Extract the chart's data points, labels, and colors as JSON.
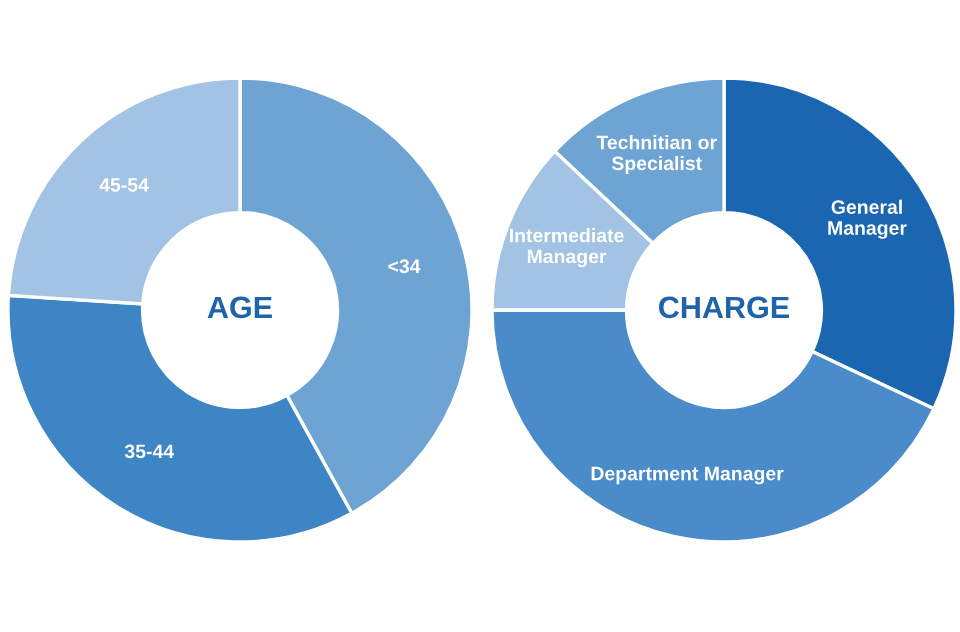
{
  "chart_data": [
    {
      "type": "donut",
      "title": "AGE",
      "categories": [
        "<34",
        "35-44",
        "45-54"
      ],
      "values": [
        42,
        34,
        24
      ],
      "colors": [
        "#6ea4d3",
        "#3e85c5",
        "#a2c3e3"
      ]
    },
    {
      "type": "donut",
      "title": "CHARGE",
      "categories": [
        "General\nManager",
        "Department Manager",
        "Intermediate\nManager",
        "Technitian or\nSpecialist"
      ],
      "values": [
        32,
        43,
        12,
        13
      ],
      "colors": [
        "#1a66b0",
        "#4a8bca",
        "#a2c3e3",
        "#6ea4d3"
      ]
    }
  ]
}
